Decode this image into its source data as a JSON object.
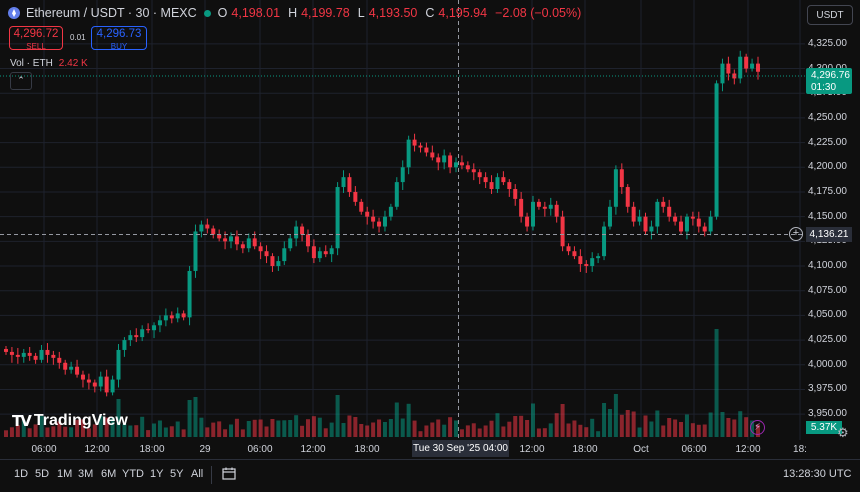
{
  "header": {
    "symbol": "Ethereum / USDT · 30 · MEXC",
    "ohlc": {
      "o_label": "O",
      "o": "4,198.01",
      "h_label": "H",
      "h": "4,199.78",
      "l_label": "L",
      "l": "4,193.50",
      "c_label": "C",
      "c": "4,195.94",
      "change": "−2.08 (−0.05%)"
    },
    "sell_price": "4,296.72",
    "sell_label": "SELL",
    "spread": "0.01",
    "buy_price": "4,296.73",
    "buy_label": "BUY",
    "vol_label": "Vol · ETH",
    "vol_value": "2.42 K",
    "collapse_icon": "chevron-up"
  },
  "currency_selector": "USDT",
  "price_scale": {
    "labels": [
      "4,325.00",
      "4,300.00",
      "4,275.00",
      "4,250.00",
      "4,225.00",
      "4,200.00",
      "4,175.00",
      "4,150.00",
      "4,125.00",
      "4,100.00",
      "4,075.00",
      "4,050.00",
      "4,025.00",
      "4,000.00",
      "3,975.00",
      "3,950.00"
    ],
    "current_price": "4,296.76",
    "countdown": "01:30",
    "crosshair_price": "4,136.21",
    "volume_tag": "5.37K"
  },
  "time_axis": {
    "labels": [
      "06:00",
      "12:00",
      "18:00",
      "29",
      "06:00",
      "12:00",
      "18:00",
      "12:00",
      "18:00",
      "Oct",
      "06:00",
      "12:00",
      "18:"
    ],
    "crosshair_time": "Tue 30 Sep '25   04:00"
  },
  "watermark": "TradingView",
  "toolbar": {
    "ranges": [
      "1D",
      "5D",
      "1M",
      "3M",
      "6M",
      "YTD",
      "1Y",
      "5Y",
      "All"
    ],
    "clock": "13:28:30 UTC"
  },
  "colors": {
    "up": "#089981",
    "down": "#f23645",
    "background": "#0f0f0f",
    "grid": "#1e222d"
  },
  "chart_data": {
    "type": "candlestick",
    "symbol": "ETH/USDT",
    "interval": "30m",
    "exchange": "MEXC",
    "ylim": [
      3940,
      4335
    ],
    "current_price": 4296.76,
    "crosshair_price": 4136.21,
    "closes": [
      4013,
      4010,
      4008,
      4012,
      4009,
      4005,
      4015,
      4010,
      4007,
      4002,
      3995,
      3998,
      3990,
      3985,
      3982,
      3978,
      3988,
      3972,
      3985,
      4015,
      4025,
      4030,
      4028,
      4036,
      4035,
      4040,
      4045,
      4050,
      4047,
      4052,
      4048,
      4095,
      4135,
      4142,
      4138,
      4132,
      4128,
      4125,
      4130,
      4122,
      4118,
      4128,
      4120,
      4115,
      4110,
      4100,
      4105,
      4118,
      4128,
      4140,
      4132,
      4120,
      4108,
      4115,
      4112,
      4118,
      4180,
      4190,
      4175,
      4165,
      4155,
      4150,
      4145,
      4140,
      4150,
      4160,
      4185,
      4200,
      4228,
      4222,
      4220,
      4215,
      4210,
      4205,
      4212,
      4200,
      4205,
      4202,
      4198,
      4195,
      4190,
      4185,
      4178,
      4190,
      4185,
      4178,
      4168,
      4150,
      4140,
      4165,
      4160,
      4158,
      4162,
      4150,
      4120,
      4115,
      4110,
      4102,
      4100,
      4108,
      4110,
      4140,
      4160,
      4198,
      4180,
      4160,
      4145,
      4150,
      4135,
      4140,
      4165,
      4160,
      4150,
      4145,
      4135,
      4150,
      4148,
      4140,
      4135,
      4150,
      4285,
      4305,
      4295,
      4290,
      4312,
      4300,
      4305,
      4296.76
    ]
  }
}
